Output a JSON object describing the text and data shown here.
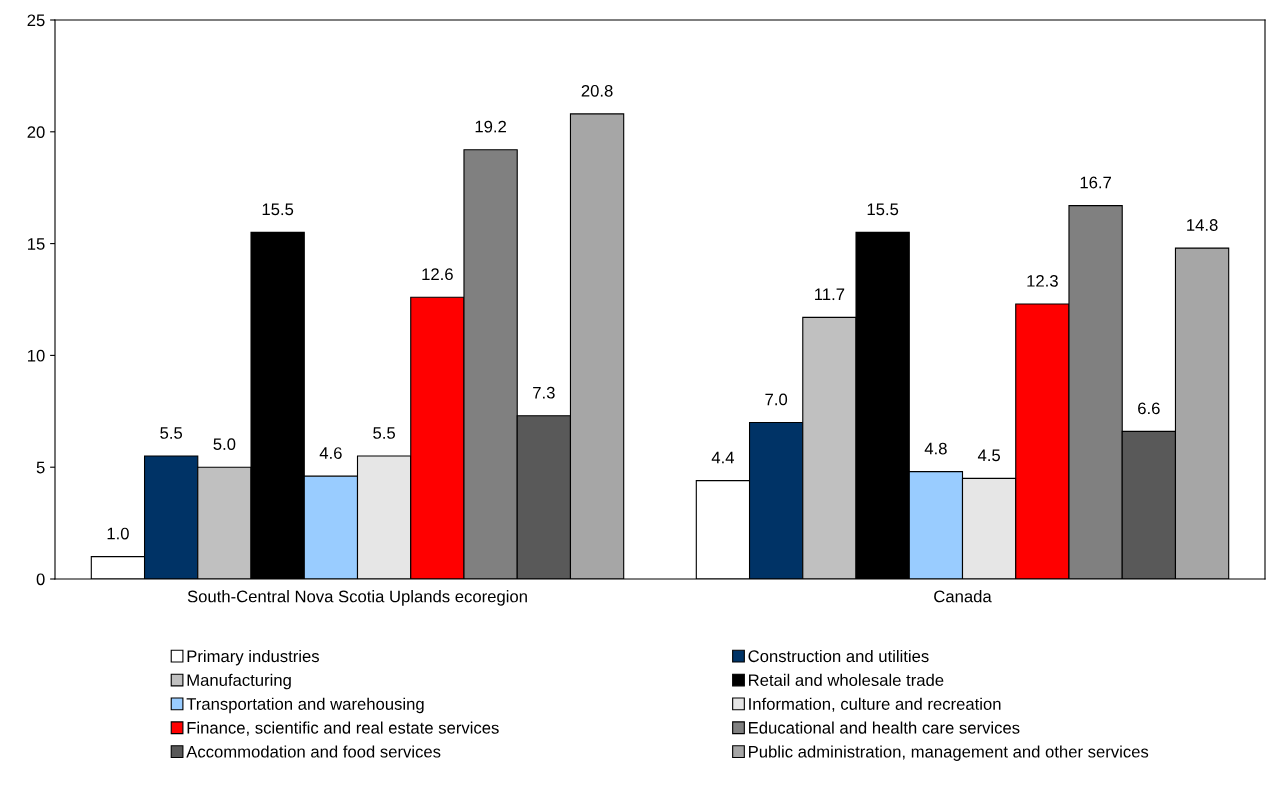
{
  "chart_data": {
    "type": "bar",
    "categories": [
      "South-Central Nova Scotia Uplands ecoregion",
      "Canada"
    ],
    "series": [
      {
        "name": "Primary industries",
        "color": "#ffffff",
        "values": [
          1.0,
          4.4
        ],
        "value_labels": [
          "1.0",
          "4.4"
        ]
      },
      {
        "name": "Construction and utilities",
        "color": "#003366",
        "values": [
          5.5,
          7.0
        ],
        "value_labels": [
          "5.5",
          "7.0"
        ]
      },
      {
        "name": "Manufacturing",
        "color": "#c0c0c0",
        "values": [
          5.0,
          11.7
        ],
        "value_labels": [
          "5.0",
          "11.7"
        ]
      },
      {
        "name": "Retail and wholesale trade",
        "color": "#000000",
        "values": [
          15.5,
          15.5
        ],
        "value_labels": [
          "15.5",
          "15.5"
        ]
      },
      {
        "name": "Transportation and warehousing",
        "color": "#99ccff",
        "values": [
          4.6,
          4.8
        ],
        "value_labels": [
          "4.6",
          "4.8"
        ]
      },
      {
        "name": "Information, culture and recreation",
        "color": "#e6e6e6",
        "values": [
          5.5,
          4.5
        ],
        "value_labels": [
          "5.5",
          "4.5"
        ]
      },
      {
        "name": "Finance, scientific and real estate services",
        "color": "#ff0000",
        "values": [
          12.6,
          12.3
        ],
        "value_labels": [
          "12.6",
          "12.3"
        ]
      },
      {
        "name": "Educational and health care services",
        "color": "#808080",
        "values": [
          19.2,
          16.7
        ],
        "value_labels": [
          "19.2",
          "16.7"
        ]
      },
      {
        "name": "Accommodation and food services",
        "color": "#595959",
        "values": [
          7.3,
          6.6
        ],
        "value_labels": [
          "7.3",
          "6.6"
        ]
      },
      {
        "name": "Public administration, management and other services",
        "color": "#a6a6a6",
        "values": [
          20.8,
          14.8
        ],
        "value_labels": [
          "20.8",
          "14.8"
        ]
      }
    ],
    "ylim": [
      0,
      25
    ],
    "yticks": [
      0,
      5,
      10,
      15,
      20,
      25
    ],
    "grid": false,
    "legend": "bottom"
  }
}
